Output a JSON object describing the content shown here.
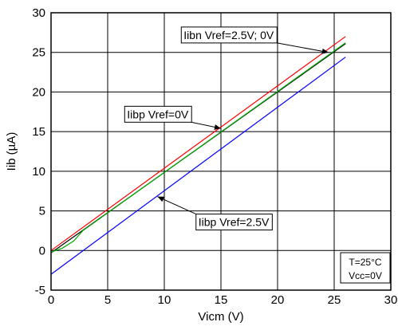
{
  "chart_data": {
    "type": "line",
    "title": "",
    "xlabel": "Vicm (V)",
    "ylabel": "Iib (µA)",
    "xlim": [
      0,
      30
    ],
    "ylim": [
      -5,
      30
    ],
    "xticks": [
      0,
      5,
      10,
      15,
      20,
      25,
      30
    ],
    "yticks": [
      -5,
      0,
      5,
      10,
      15,
      20,
      25,
      30
    ],
    "grid": true,
    "series": [
      {
        "key": "ibp0",
        "color": "#ff0000",
        "points": [
          [
            0,
            0
          ],
          [
            26,
            27
          ]
        ]
      },
      {
        "key": "ibn",
        "color": "#000000",
        "points": [
          [
            0,
            -0.3
          ],
          [
            26,
            26.1
          ]
        ]
      },
      {
        "key": "ibpm",
        "color": "#00aa00",
        "points": [
          [
            0,
            -0.2
          ],
          [
            1,
            0.3
          ],
          [
            2,
            1.2
          ],
          [
            2.8,
            2.5
          ],
          [
            26,
            26.2
          ]
        ]
      },
      {
        "key": "ibp25",
        "color": "#0000ff",
        "points": [
          [
            0,
            -3
          ],
          [
            26,
            24.4
          ]
        ]
      }
    ],
    "annotations": [
      {
        "key": "ibn",
        "text": "Iibn Vref=2.5V; 0V",
        "box": [
          11.5,
          28.2
        ],
        "arrow_to": [
          24.5,
          25.0
        ]
      },
      {
        "key": "ibp0",
        "text": "Iibp Vref=0V",
        "box": [
          6.5,
          18.2
        ],
        "arrow_to": [
          15.0,
          15.4
        ]
      },
      {
        "key": "ibp25",
        "text": "Iibp Vref=2.5V",
        "box": [
          12.8,
          4.6
        ],
        "arrow_to": [
          9.4,
          6.8
        ]
      }
    ],
    "conditions": [
      "T=25°C",
      "Vcc=0V"
    ]
  }
}
